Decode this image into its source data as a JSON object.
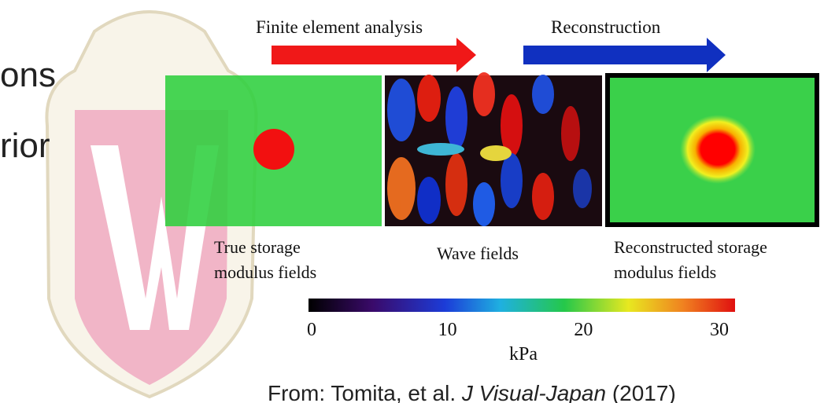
{
  "slide": {
    "bullet_fragments": [
      "ons",
      "rior"
    ],
    "figure": {
      "arrows": [
        "Finite element analysis",
        "Reconstruction"
      ],
      "panel_labels": [
        [
          "True storage",
          "modulus fields"
        ],
        [
          "Wave fields"
        ],
        [
          "Reconstructed storage",
          "modulus fields"
        ]
      ],
      "colorbar": {
        "ticks": [
          0,
          10,
          20,
          30
        ],
        "unit": "kPa"
      }
    },
    "citation": {
      "prefix": "From: Tomita, et al. ",
      "journal": "J Visual-Japan",
      "suffix": " (2017)"
    }
  }
}
